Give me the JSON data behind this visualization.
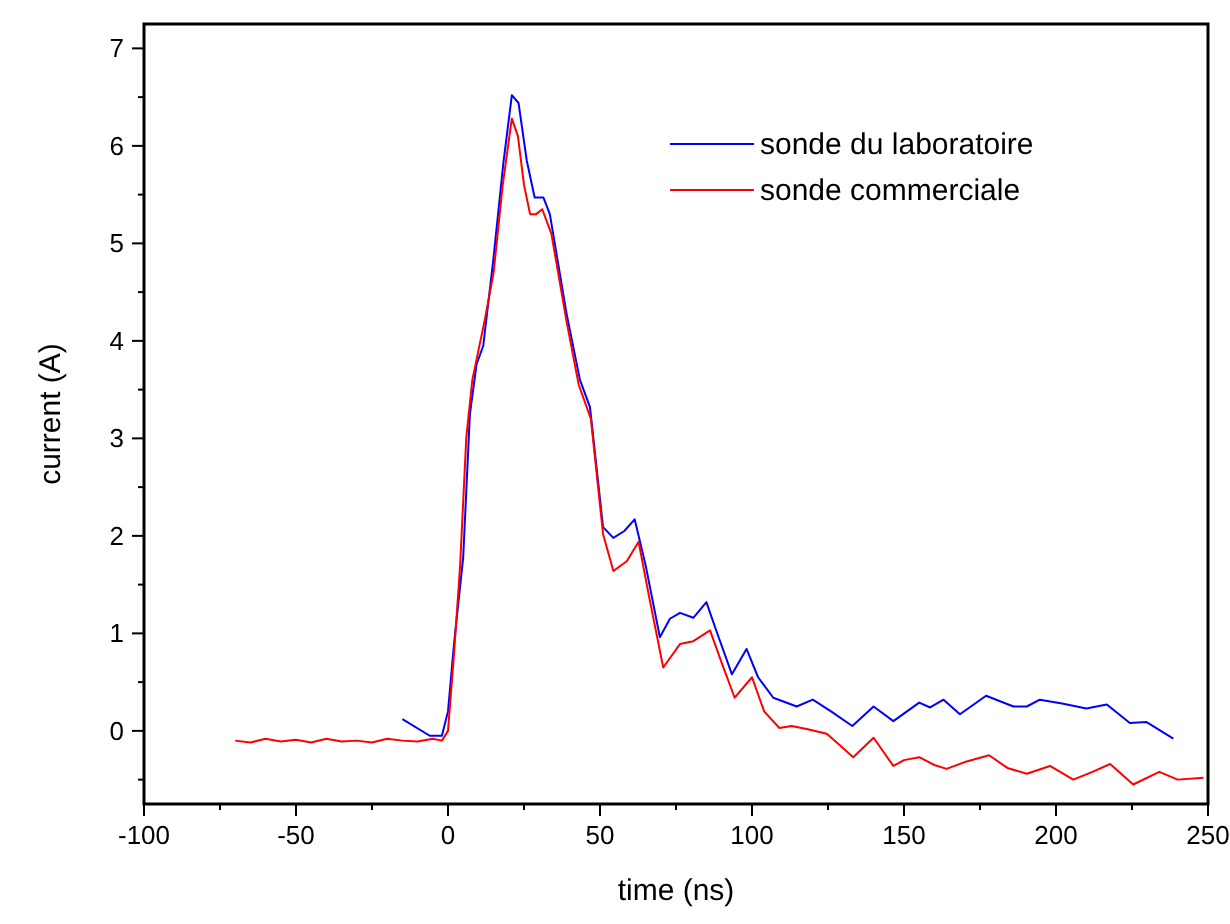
{
  "chart_data": {
    "type": "line",
    "xlabel": "time (ns)",
    "ylabel": "current (A)",
    "xlim": [
      -100,
      250
    ],
    "ylim": [
      -0.75,
      7.25
    ],
    "xticks": [
      -100,
      -50,
      0,
      50,
      100,
      150,
      200,
      250
    ],
    "yticks": [
      0,
      1,
      2,
      3,
      4,
      5,
      6,
      7
    ],
    "grid": false,
    "legend": "top right",
    "marker": "none",
    "line_style": "solid",
    "series": [
      {
        "name": "sonde du laboratoire",
        "color": "#0000ff",
        "x": [
          -15,
          -6,
          -2,
          0,
          2,
          5,
          7.2,
          9.4,
          11.6,
          14.9,
          18.2,
          21,
          23.2,
          25.9,
          28.5,
          31.4,
          33.5,
          39,
          43.4,
          46.7,
          51,
          54.4,
          58,
          61.4,
          65,
          69.7,
          73,
          76.3,
          80.7,
          85,
          88,
          93.4,
          98.2,
          102,
          107,
          114.7,
          120,
          126,
          133,
          140,
          146.5,
          155,
          158.6,
          163,
          168.4,
          177,
          186,
          190.4,
          194.7,
          202,
          210,
          216.7,
          224.3,
          229.8,
          238.6
        ],
        "values": [
          0.12,
          -0.05,
          -0.05,
          0.2,
          0.9,
          1.78,
          3.25,
          3.76,
          3.95,
          4.83,
          5.82,
          6.52,
          6.44,
          5.85,
          5.47,
          5.47,
          5.3,
          4.28,
          3.6,
          3.32,
          2.09,
          1.98,
          2.05,
          2.17,
          1.7,
          0.96,
          1.15,
          1.21,
          1.16,
          1.32,
          1.05,
          0.58,
          0.84,
          0.55,
          0.34,
          0.25,
          0.32,
          0.2,
          0.05,
          0.25,
          0.1,
          0.29,
          0.24,
          0.32,
          0.17,
          0.36,
          0.25,
          0.25,
          0.32,
          0.28,
          0.23,
          0.27,
          0.08,
          0.09,
          -0.08
        ]
      },
      {
        "name": "sonde commerciale",
        "color": "#ff0000",
        "x": [
          -70,
          -65,
          -60,
          -55,
          -50,
          -45,
          -40,
          -35,
          -30,
          -25,
          -20,
          -15,
          -10,
          -5,
          -2,
          0,
          2,
          4,
          6,
          8,
          10,
          12,
          15,
          18,
          21,
          23,
          25,
          27,
          29,
          31,
          34,
          39,
          43,
          47,
          51,
          54.4,
          58.8,
          62.7,
          66,
          70.8,
          76.3,
          80.7,
          86.2,
          90,
          94.3,
          100,
          104,
          109,
          113,
          118,
          124.6,
          129,
          133.3,
          140,
          146.5,
          150,
          155,
          160,
          164,
          170,
          178,
          184,
          190.4,
          198,
          205.7,
          212,
          217.8,
          225.4,
          234,
          240,
          248.5
        ],
        "values": [
          -0.1,
          -0.12,
          -0.08,
          -0.11,
          -0.09,
          -0.12,
          -0.08,
          -0.11,
          -0.1,
          -0.12,
          -0.08,
          -0.1,
          -0.11,
          -0.08,
          -0.1,
          0,
          0.8,
          1.7,
          3.0,
          3.6,
          3.9,
          4.2,
          4.7,
          5.6,
          6.28,
          6.1,
          5.6,
          5.3,
          5.3,
          5.35,
          5.1,
          4.2,
          3.55,
          3.2,
          2.02,
          1.64,
          1.74,
          1.94,
          1.4,
          0.65,
          0.89,
          0.92,
          1.03,
          0.7,
          0.34,
          0.55,
          0.2,
          0.03,
          0.05,
          0.02,
          -0.03,
          -0.15,
          -0.27,
          -0.07,
          -0.36,
          -0.3,
          -0.27,
          -0.35,
          -0.39,
          -0.32,
          -0.25,
          -0.38,
          -0.44,
          -0.36,
          -0.5,
          -0.42,
          -0.34,
          -0.55,
          -0.42,
          -0.5,
          -0.48
        ]
      }
    ]
  }
}
